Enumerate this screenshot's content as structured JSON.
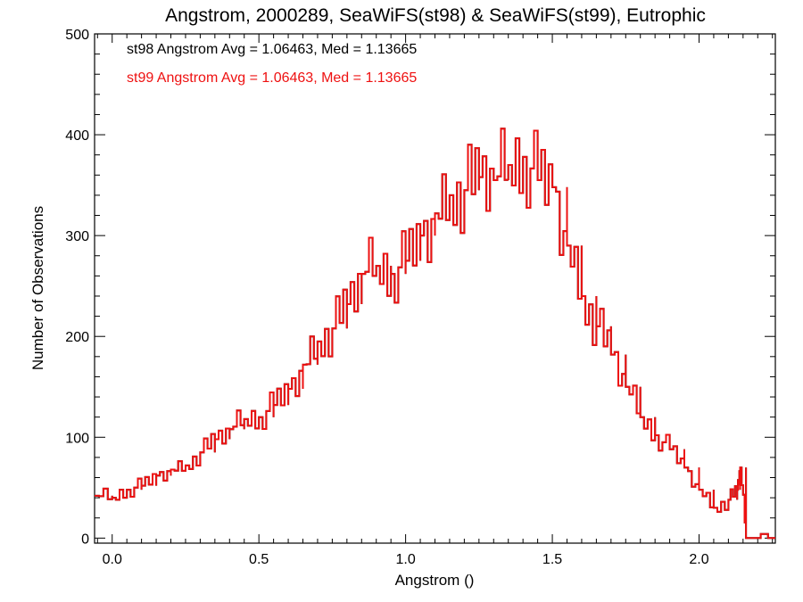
{
  "chart_data": {
    "type": "line",
    "title": "Angstrom, 2000289, SeaWiFS(st98) & SeaWiFS(st99), Eutrophic",
    "xlabel": "Angstrom ()",
    "ylabel": "Number of Observations",
    "xlim": [
      -0.06,
      2.26
    ],
    "ylim": [
      -5,
      500
    ],
    "xticks": [
      0.0,
      0.5,
      1.0,
      1.5,
      2.0
    ],
    "xtick_labels": [
      "0.0",
      "0.5",
      "1.0",
      "1.5",
      "2.0"
    ],
    "yticks": [
      0,
      100,
      200,
      300,
      400,
      500
    ],
    "ytick_labels": [
      "0",
      "100",
      "200",
      "300",
      "400",
      "500"
    ],
    "grid": false,
    "annotations": [
      {
        "text": "st98 Angstrom Avg = 1.06463, Med = 1.13665",
        "color": "#000000"
      },
      {
        "text": "st99 Angstrom Avg = 1.06463, Med = 1.13665",
        "color": "#ee1111"
      }
    ],
    "series": [
      {
        "name": "st98",
        "color": "#000000",
        "x": [
          -0.06,
          0.0,
          0.05,
          0.1,
          0.15,
          0.2,
          0.25,
          0.3,
          0.35,
          0.4,
          0.45,
          0.5,
          0.55,
          0.6,
          0.65,
          0.7,
          0.75,
          0.8,
          0.85,
          0.9,
          0.95,
          1.0,
          1.05,
          1.1,
          1.15,
          1.2,
          1.25,
          1.3,
          1.35,
          1.4,
          1.45,
          1.5,
          1.55,
          1.6,
          1.65,
          1.7,
          1.75,
          1.8,
          1.85,
          1.9,
          1.95,
          2.0,
          2.05,
          2.1,
          2.13,
          2.14,
          2.16,
          2.26
        ],
        "values": [
          42,
          40,
          48,
          52,
          62,
          68,
          72,
          85,
          98,
          108,
          118,
          120,
          132,
          148,
          172,
          195,
          208,
          232,
          262,
          270,
          262,
          275,
          300,
          322,
          340,
          345,
          358,
          355,
          370,
          378,
          355,
          348,
          290,
          240,
          210,
          182,
          150,
          120,
          102,
          88,
          70,
          48,
          30,
          38,
          48,
          70,
          0,
          0
        ]
      },
      {
        "name": "st99",
        "color": "#ee1111",
        "x": [
          -0.06,
          0.0,
          0.05,
          0.1,
          0.15,
          0.2,
          0.25,
          0.3,
          0.35,
          0.4,
          0.45,
          0.5,
          0.55,
          0.6,
          0.65,
          0.7,
          0.75,
          0.8,
          0.85,
          0.9,
          0.95,
          1.0,
          1.05,
          1.1,
          1.15,
          1.2,
          1.25,
          1.3,
          1.35,
          1.4,
          1.45,
          1.5,
          1.55,
          1.6,
          1.65,
          1.7,
          1.75,
          1.8,
          1.85,
          1.9,
          1.95,
          2.0,
          2.05,
          2.1,
          2.13,
          2.14,
          2.16,
          2.26
        ],
        "values": [
          42,
          40,
          48,
          52,
          62,
          68,
          72,
          85,
          98,
          108,
          118,
          120,
          132,
          148,
          172,
          195,
          208,
          232,
          262,
          270,
          262,
          275,
          300,
          322,
          340,
          345,
          358,
          355,
          370,
          378,
          355,
          348,
          290,
          240,
          210,
          182,
          150,
          120,
          102,
          88,
          70,
          48,
          30,
          38,
          48,
          70,
          0,
          0
        ]
      }
    ]
  }
}
